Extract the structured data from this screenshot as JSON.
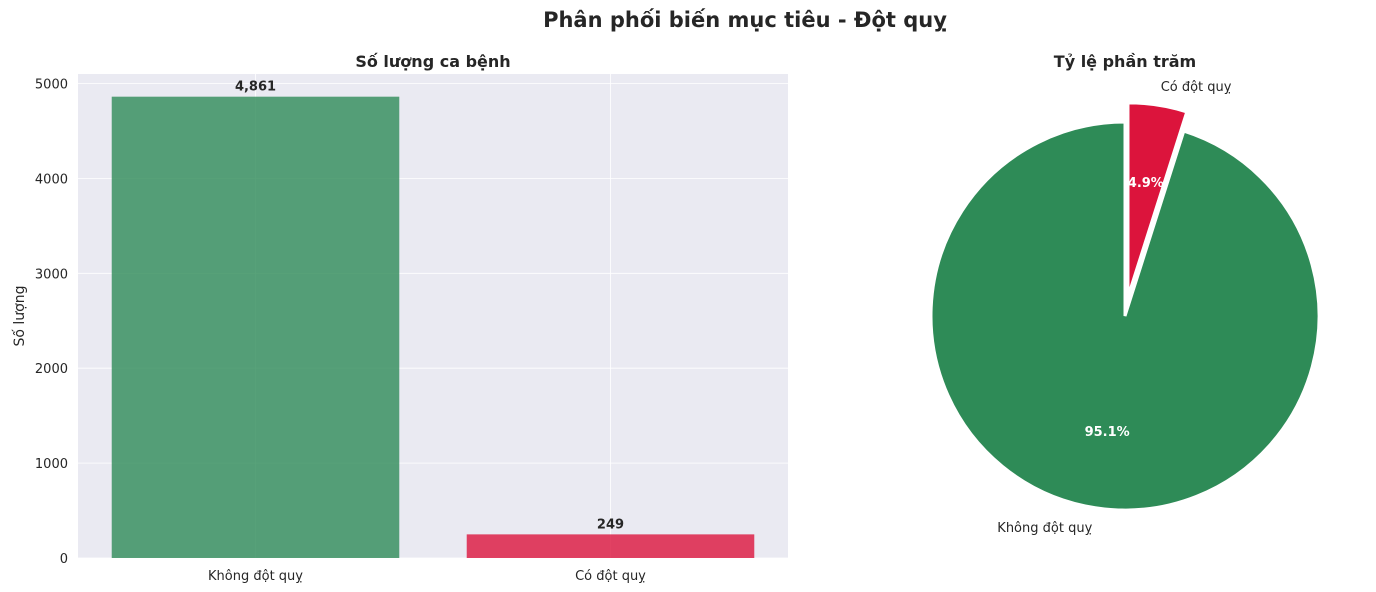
{
  "suptitle": "Phân phối biến mục tiêu - Đột quỵ",
  "chart_data": [
    {
      "type": "bar",
      "title": "Số lượng ca bệnh",
      "xlabel": "",
      "ylabel": "Số lượng",
      "categories": [
        "Không đột quỵ",
        "Có đột quỵ"
      ],
      "values": [
        4861,
        249
      ],
      "value_labels": [
        "4,861",
        "249"
      ],
      "colors": [
        "#2e8b57",
        "#dc143c"
      ],
      "ylim": [
        0,
        5100
      ],
      "yticks": [
        0,
        1000,
        2000,
        3000,
        4000,
        5000
      ],
      "grid": true
    },
    {
      "type": "pie",
      "title": "Tỷ lệ phần trăm",
      "labels": [
        "Không đột quỵ",
        "Có đột quỵ"
      ],
      "values": [
        95.1,
        4.9
      ],
      "pct_labels": [
        "95.1%",
        "4.9%"
      ],
      "colors": [
        "#2e8b57",
        "#dc143c"
      ],
      "explode": [
        0,
        0.1
      ],
      "start_angle": 90
    }
  ]
}
